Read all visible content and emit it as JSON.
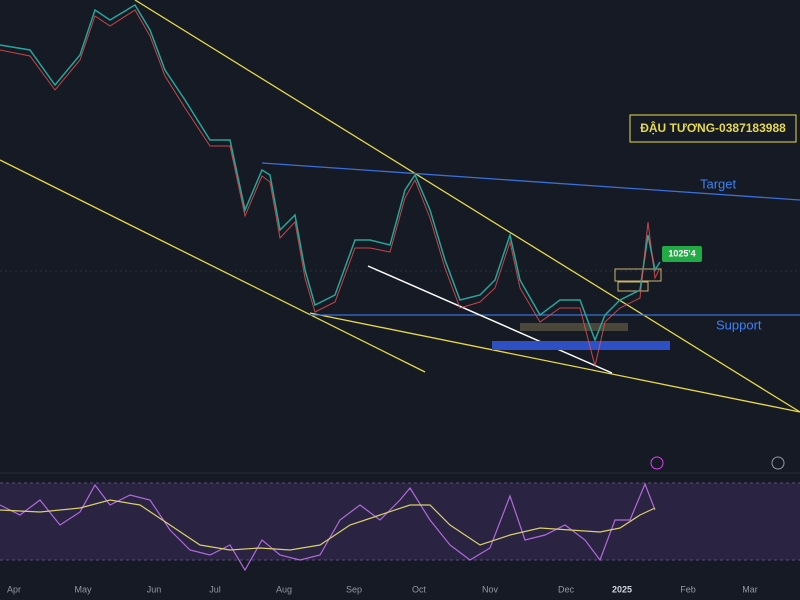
{
  "annotations": {
    "symbol_label": "ĐẬU TƯƠNG-0387183988",
    "target": "Target",
    "support": "Support",
    "price_tag": "1025'4"
  },
  "x_axis": {
    "labels": [
      "Apr",
      "May",
      "Jun",
      "Jul",
      "Aug",
      "Sep",
      "Oct",
      "Nov",
      "Dec",
      "2025",
      "Feb",
      "Mar"
    ]
  }
}
